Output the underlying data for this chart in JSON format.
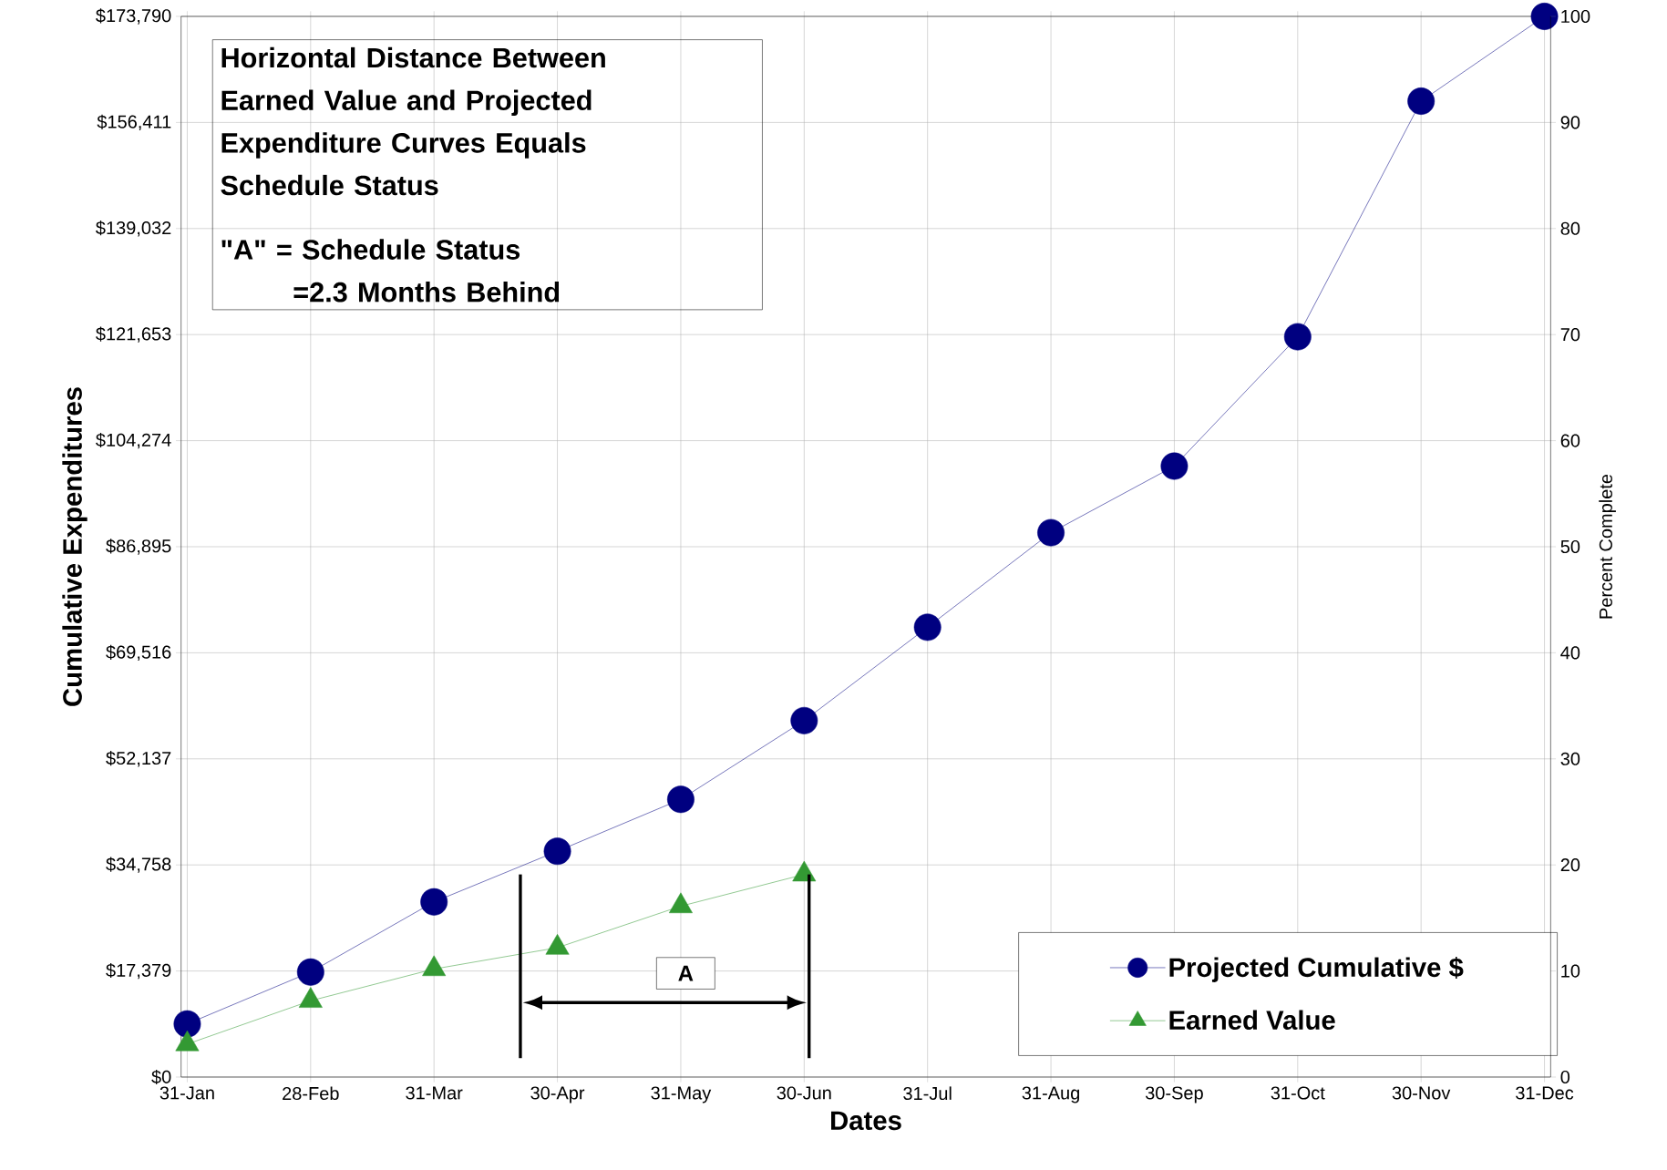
{
  "chart_data": {
    "type": "line",
    "xlabel": "Dates",
    "ylabel": "Cumulative Expenditures",
    "y2label": "Percent Complete",
    "categories": [
      "31-Jan",
      "28-Feb",
      "31-Mar",
      "30-Apr",
      "31-May",
      "30-Jun",
      "31-Jul",
      "31-Aug",
      "30-Sep",
      "31-Oct",
      "30-Nov",
      "31-Dec"
    ],
    "series": [
      {
        "name": "Projected Cumulative $",
        "color": "#000080",
        "marker": "circle",
        "values": [
          8700,
          17200,
          28700,
          37000,
          45500,
          58400,
          73700,
          89200,
          100100,
          121300,
          159900,
          173790
        ]
      },
      {
        "name": "Earned Value",
        "color": "#339933",
        "marker": "triangle",
        "values": [
          5400,
          12500,
          17700,
          21200,
          28000,
          33200,
          null,
          null,
          null,
          null,
          null,
          null
        ]
      }
    ],
    "ylim": [
      0,
      173790
    ],
    "yticks": [
      {
        "value": 0,
        "label": "$0"
      },
      {
        "value": 17379,
        "label": "$17,379"
      },
      {
        "value": 34758,
        "label": "$34,758"
      },
      {
        "value": 52137,
        "label": "$52,137"
      },
      {
        "value": 69516,
        "label": "$69,516"
      },
      {
        "value": 86895,
        "label": "$86,895"
      },
      {
        "value": 104274,
        "label": "$104,274"
      },
      {
        "value": 121653,
        "label": "$121,653"
      },
      {
        "value": 139032,
        "label": "$139,032"
      },
      {
        "value": 156411,
        "label": "$156,411"
      },
      {
        "value": 173790,
        "label": "$173,790"
      }
    ],
    "y2lim": [
      0,
      100
    ],
    "y2ticks": [
      0,
      10,
      20,
      30,
      40,
      50,
      60,
      70,
      80,
      90,
      100
    ],
    "grid": true,
    "legend": "bottom right",
    "line_style": "solid",
    "annotations": [
      "Horizontal Distance Between Earned Value and Projected Expenditure Curves Equals Schedule Status",
      "\"A\" = Schedule Status",
      "=2.3 Months Behind",
      "A"
    ]
  }
}
